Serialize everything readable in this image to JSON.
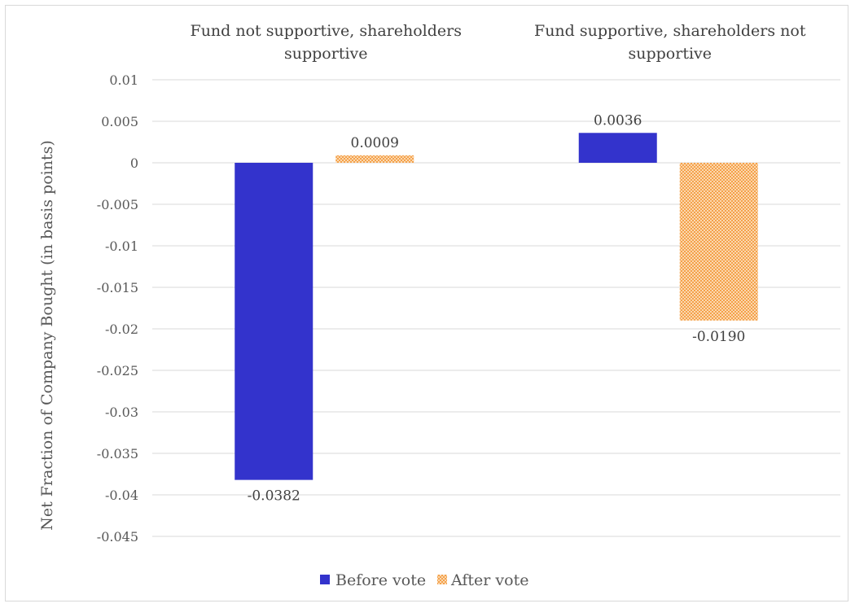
{
  "chart_data": {
    "type": "bar",
    "categories": [
      "Fund not supportive, shareholders supportive",
      "Fund supportive, shareholders not supportive"
    ],
    "category_label_lines": [
      [
        "Fund not supportive, shareholders",
        "supportive"
      ],
      [
        "Fund supportive, shareholders not",
        "supportive"
      ]
    ],
    "series": [
      {
        "name": "Before vote",
        "values": [
          -0.0382,
          0.0036
        ],
        "labels": [
          "-0.0382",
          "0.0036"
        ],
        "color": "#3333cc",
        "pattern": "solid"
      },
      {
        "name": "After vote",
        "values": [
          0.0009,
          -0.019
        ],
        "labels": [
          "0.0009",
          "-0.0190"
        ],
        "color": "#f4a14a",
        "pattern": "checker"
      }
    ],
    "ylabel": "Net Fraction of Company Bought (in basis points)",
    "xlabel": "",
    "title": "",
    "ylim": [
      -0.045,
      0.01
    ],
    "yticks": [
      0.01,
      0.005,
      0,
      -0.005,
      -0.01,
      -0.015,
      -0.02,
      -0.025,
      -0.03,
      -0.035,
      -0.04,
      -0.045
    ],
    "ytick_labels": [
      "0.01",
      "0.005",
      "0",
      "-0.005",
      "-0.01",
      "-0.015",
      "-0.02",
      "-0.025",
      "-0.03",
      "-0.035",
      "-0.04",
      "-0.045"
    ],
    "grid": true,
    "legend_position": "bottom"
  }
}
